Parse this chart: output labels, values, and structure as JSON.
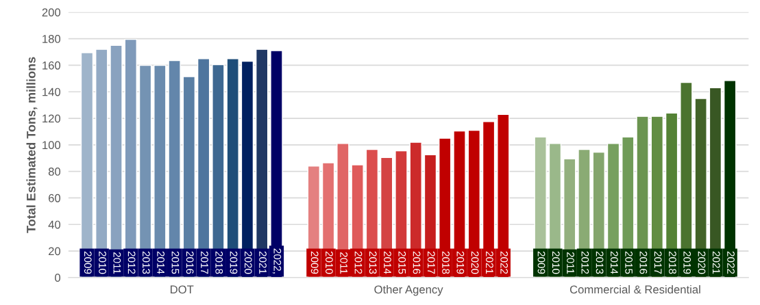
{
  "chart_data": {
    "type": "bar",
    "ylabel": "Total Estimated Tons, millions",
    "categories": [
      "DOT",
      "Other Agency",
      "Commercial & Residential"
    ],
    "ylim": [
      0,
      200
    ],
    "yticks": [
      0,
      20,
      40,
      60,
      80,
      100,
      120,
      140,
      160,
      180,
      200
    ],
    "grid": "y",
    "legend": false,
    "annotations": [
      "2022,"
    ],
    "series": [
      {
        "name": "2009",
        "values": [
          169.5,
          84,
          106
        ],
        "colors": [
          "#9fb4ca",
          "#e48080",
          "#a9c19a"
        ]
      },
      {
        "name": "2010",
        "values": [
          172,
          86.5,
          101
        ],
        "colors": [
          "#93aac4",
          "#e37070",
          "#9ab88a"
        ]
      },
      {
        "name": "2011",
        "values": [
          175,
          101,
          89.5
        ],
        "colors": [
          "#89a2bf",
          "#e06666",
          "#93b07e"
        ]
      },
      {
        "name": "2012",
        "values": [
          179.5,
          85,
          96.5
        ],
        "colors": [
          "#7f9aba",
          "#df5a5a",
          "#8aab74"
        ]
      },
      {
        "name": "2013",
        "values": [
          160,
          96.5,
          94.5
        ],
        "colors": [
          "#7493b3",
          "#db4d4d",
          "#84a56d"
        ]
      },
      {
        "name": "2014",
        "values": [
          160,
          90.5,
          101
        ],
        "colors": [
          "#6a8bae",
          "#d44444",
          "#77a05f"
        ]
      },
      {
        "name": "2015",
        "values": [
          163.5,
          95.5,
          106
        ],
        "colors": [
          "#6386ab",
          "#d23a3a",
          "#709b58"
        ]
      },
      {
        "name": "2016",
        "values": [
          151.5,
          102,
          121.5
        ],
        "colors": [
          "#5a7fa4",
          "#cc2a2a",
          "#6b9450"
        ]
      },
      {
        "name": "2017",
        "values": [
          165,
          92.5,
          121.5
        ],
        "colors": [
          "#4e759e",
          "#c61e1e",
          "#628d42"
        ]
      },
      {
        "name": "2018",
        "values": [
          160.5,
          105,
          124
        ],
        "colors": [
          "#3e6891",
          "#c00000",
          "#548235"
        ]
      },
      {
        "name": "2019",
        "values": [
          165,
          110.5,
          147
        ],
        "colors": [
          "#1f4e79",
          "#c00000",
          "#4b732f"
        ]
      },
      {
        "name": "2020",
        "values": [
          163,
          111,
          135
        ],
        "colors": [
          "#002060",
          "#c00000",
          "#426328"
        ]
      },
      {
        "name": "2021",
        "values": [
          172,
          117.5,
          143
        ],
        "colors": [
          "#203864",
          "#c00000",
          "#385723"
        ]
      },
      {
        "name": "2022",
        "values": [
          171,
          123,
          148.5
        ],
        "colors": [
          "#000066",
          "#c00000",
          "#003300"
        ]
      }
    ]
  }
}
